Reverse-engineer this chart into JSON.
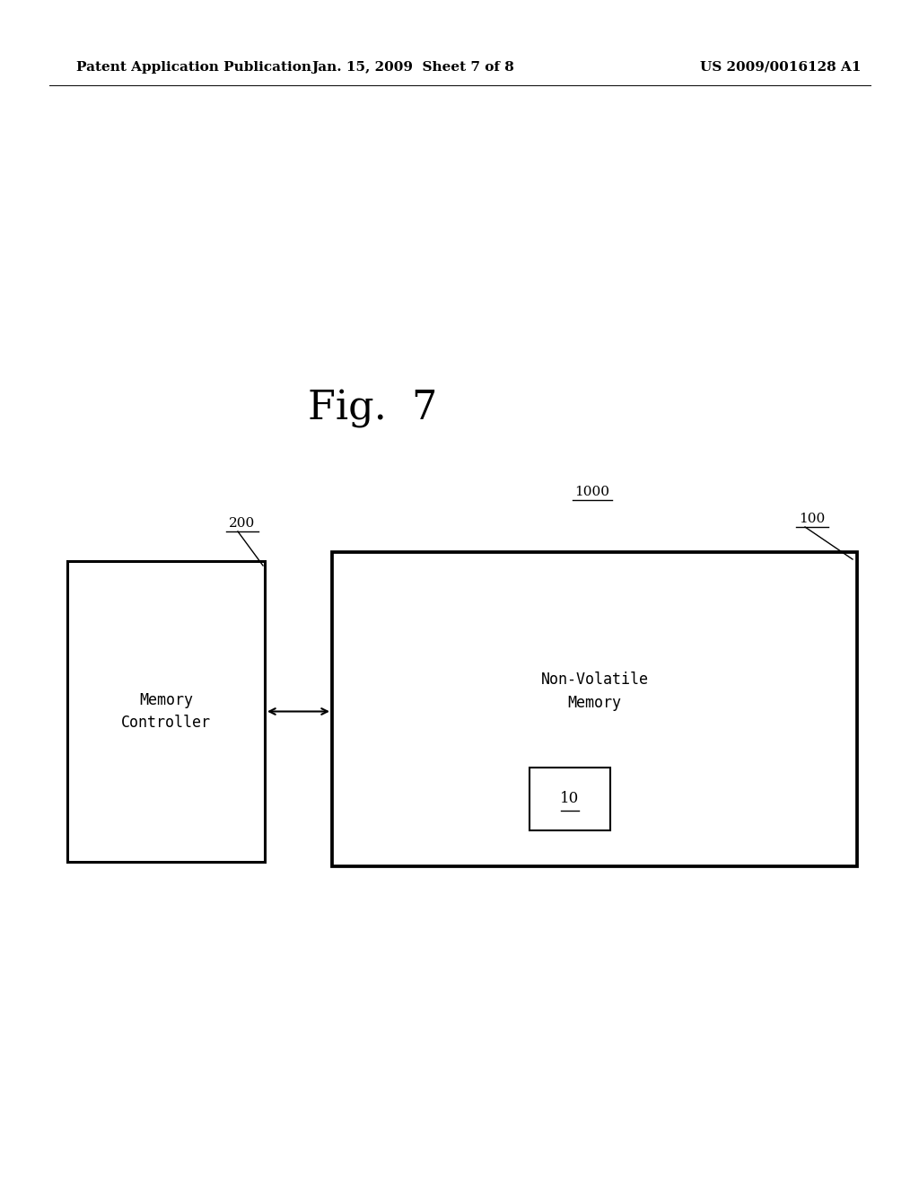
{
  "background_color": "#ffffff",
  "fig_width": 10.24,
  "fig_height": 13.2,
  "header_left": "Patent Application Publication",
  "header_center": "Jan. 15, 2009  Sheet 7 of 8",
  "header_right": "US 2009/0016128 A1",
  "header_fontsize": 11,
  "fig_label": "Fig.  7",
  "fig_label_fontsize": 32,
  "box1_label": "Memory\nController",
  "box1_ref": "200",
  "box2_label": "Non-Volatile\nMemory",
  "box2_ref": "100",
  "label_1000": "1000",
  "inner_box_label": "10",
  "linewidth": 2.2,
  "body_fontsize": 12,
  "ref_fontsize": 11
}
